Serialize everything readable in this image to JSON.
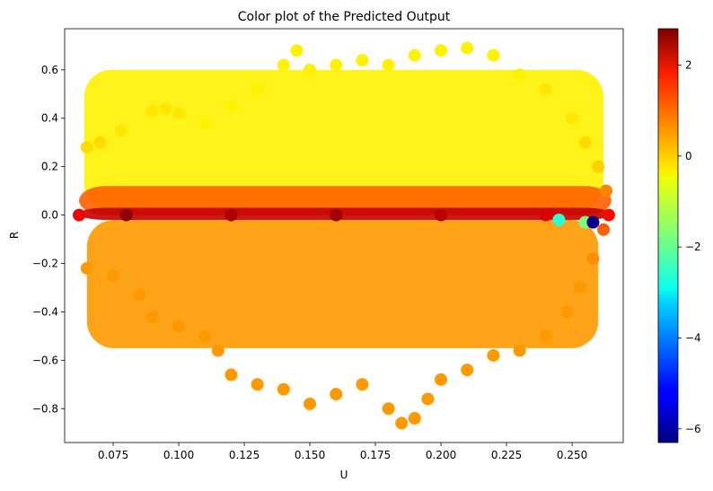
{
  "chart_data": {
    "type": "scatter",
    "title": "Color plot of the Predicted Output",
    "xlabel": "U",
    "ylabel": "R",
    "xlim": [
      0.0565,
      0.2695
    ],
    "ylim": [
      -0.94,
      0.77
    ],
    "xticks": [
      0.075,
      0.1,
      0.125,
      0.15,
      0.175,
      0.2,
      0.225,
      0.25
    ],
    "xtick_labels": [
      "0.075",
      "0.100",
      "0.125",
      "0.150",
      "0.175",
      "0.200",
      "0.225",
      "0.250"
    ],
    "yticks": [
      0.6,
      0.4,
      0.2,
      0.0,
      -0.2,
      -0.4,
      -0.6,
      -0.8
    ],
    "ytick_labels": [
      "0.6",
      "0.4",
      "0.2",
      "0.0",
      "−0.2",
      "−0.4",
      "−0.6",
      "−0.8"
    ],
    "grid": false,
    "colormap": "jet",
    "colorbar": {
      "vmin": -6.3,
      "vmax": 2.8,
      "ticks": [
        2,
        0,
        -2,
        -4,
        -6
      ],
      "tick_labels": [
        "2",
        "0",
        "−2",
        "−4",
        "−6"
      ]
    },
    "series": [
      {
        "description_points": "color value c encodes predicted output",
        "points": [
          {
            "x": 0.065,
            "y": 0.28,
            "c": -0.3
          },
          {
            "x": 0.07,
            "y": 0.3,
            "c": -0.3
          },
          {
            "x": 0.078,
            "y": 0.35,
            "c": -0.4
          },
          {
            "x": 0.09,
            "y": 0.43,
            "c": -0.4
          },
          {
            "x": 0.095,
            "y": 0.44,
            "c": -0.4
          },
          {
            "x": 0.1,
            "y": 0.42,
            "c": -0.4
          },
          {
            "x": 0.11,
            "y": 0.38,
            "c": -0.5
          },
          {
            "x": 0.12,
            "y": 0.45,
            "c": -0.5
          },
          {
            "x": 0.13,
            "y": 0.52,
            "c": -0.5
          },
          {
            "x": 0.14,
            "y": 0.62,
            "c": -0.5
          },
          {
            "x": 0.145,
            "y": 0.68,
            "c": -0.5
          },
          {
            "x": 0.15,
            "y": 0.6,
            "c": -0.5
          },
          {
            "x": 0.16,
            "y": 0.62,
            "c": -0.5
          },
          {
            "x": 0.17,
            "y": 0.64,
            "c": -0.5
          },
          {
            "x": 0.18,
            "y": 0.62,
            "c": -0.5
          },
          {
            "x": 0.19,
            "y": 0.66,
            "c": -0.5
          },
          {
            "x": 0.2,
            "y": 0.68,
            "c": -0.5
          },
          {
            "x": 0.21,
            "y": 0.69,
            "c": -0.5
          },
          {
            "x": 0.22,
            "y": 0.66,
            "c": -0.5
          },
          {
            "x": 0.23,
            "y": 0.58,
            "c": -0.5
          },
          {
            "x": 0.24,
            "y": 0.52,
            "c": -0.4
          },
          {
            "x": 0.25,
            "y": 0.4,
            "c": -0.4
          },
          {
            "x": 0.255,
            "y": 0.3,
            "c": -0.3
          },
          {
            "x": 0.26,
            "y": 0.2,
            "c": -0.2
          },
          {
            "x": 0.263,
            "y": 0.1,
            "c": 0.5
          },
          {
            "x": 0.062,
            "y": 0.0,
            "c": 1.8
          },
          {
            "x": 0.08,
            "y": 0.0,
            "c": 2.7
          },
          {
            "x": 0.12,
            "y": 0.0,
            "c": 2.4
          },
          {
            "x": 0.16,
            "y": 0.0,
            "c": 2.5
          },
          {
            "x": 0.2,
            "y": 0.0,
            "c": 2.3
          },
          {
            "x": 0.24,
            "y": 0.0,
            "c": 2.0
          },
          {
            "x": 0.264,
            "y": 0.0,
            "c": 1.6
          },
          {
            "x": 0.245,
            "y": -0.02,
            "c": -2.5
          },
          {
            "x": 0.255,
            "y": -0.03,
            "c": -1.8
          },
          {
            "x": 0.258,
            "y": -0.03,
            "c": -6.2
          },
          {
            "x": 0.065,
            "y": -0.22,
            "c": 0.3
          },
          {
            "x": 0.075,
            "y": -0.25,
            "c": 0.3
          },
          {
            "x": 0.085,
            "y": -0.33,
            "c": 0.3
          },
          {
            "x": 0.09,
            "y": -0.42,
            "c": 0.3
          },
          {
            "x": 0.1,
            "y": -0.46,
            "c": 0.3
          },
          {
            "x": 0.11,
            "y": -0.5,
            "c": 0.3
          },
          {
            "x": 0.115,
            "y": -0.56,
            "c": 0.3
          },
          {
            "x": 0.12,
            "y": -0.66,
            "c": 0.3
          },
          {
            "x": 0.13,
            "y": -0.7,
            "c": 0.3
          },
          {
            "x": 0.14,
            "y": -0.72,
            "c": 0.3
          },
          {
            "x": 0.15,
            "y": -0.78,
            "c": 0.3
          },
          {
            "x": 0.16,
            "y": -0.74,
            "c": 0.3
          },
          {
            "x": 0.17,
            "y": -0.7,
            "c": 0.3
          },
          {
            "x": 0.18,
            "y": -0.8,
            "c": 0.3
          },
          {
            "x": 0.185,
            "y": -0.86,
            "c": 0.3
          },
          {
            "x": 0.19,
            "y": -0.84,
            "c": 0.3
          },
          {
            "x": 0.195,
            "y": -0.76,
            "c": 0.3
          },
          {
            "x": 0.2,
            "y": -0.68,
            "c": 0.3
          },
          {
            "x": 0.21,
            "y": -0.64,
            "c": 0.3
          },
          {
            "x": 0.22,
            "y": -0.58,
            "c": 0.3
          },
          {
            "x": 0.23,
            "y": -0.56,
            "c": 0.3
          },
          {
            "x": 0.24,
            "y": -0.5,
            "c": 0.3
          },
          {
            "x": 0.248,
            "y": -0.4,
            "c": 0.3
          },
          {
            "x": 0.253,
            "y": -0.3,
            "c": 0.3
          },
          {
            "x": 0.258,
            "y": -0.18,
            "c": 0.4
          },
          {
            "x": 0.262,
            "y": -0.06,
            "c": 0.8
          }
        ]
      }
    ]
  }
}
